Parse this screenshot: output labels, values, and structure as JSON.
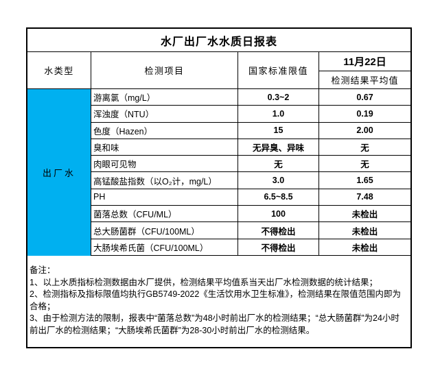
{
  "title": "水厂出厂水水质日报表",
  "header": {
    "water_type": "水类型",
    "test_item": "检测项目",
    "standard_limit": "国家标准限值",
    "date": "11月22日",
    "avg_result": "检测结果平均值"
  },
  "water_type_value": "出厂水",
  "rows": [
    {
      "item": "游离氯（mg/L）",
      "limit": "0.3~2",
      "result": "0.67"
    },
    {
      "item": "浑浊度（NTU）",
      "limit": "1.0",
      "result": "0.19"
    },
    {
      "item": "色度（Hazen）",
      "limit": "15",
      "result": "2.00"
    },
    {
      "item": "臭和味",
      "limit": "无异臭、异味",
      "result": "无"
    },
    {
      "item": "肉眼可见物",
      "limit": "无",
      "result": "无"
    },
    {
      "item": "高锰酸盐指数（以O₂计，mg/L）",
      "limit": "3.0",
      "result": "1.65"
    },
    {
      "item": "PH",
      "limit": "6.5~8.5",
      "result": "7.48"
    },
    {
      "item": "菌落总数（CFU/ML）",
      "limit": "100",
      "result": "未检出"
    },
    {
      "item": "总大肠菌群（CFU/100ML）",
      "limit": "不得检出",
      "result": "未检出"
    },
    {
      "item": "大肠埃希氏菌（CFU/100ML）",
      "limit": "不得检出",
      "result": "未检出"
    }
  ],
  "notes": {
    "label": "备注：",
    "items": [
      "1、以上水质指标检测数据由水厂提供，检测结果平均值系当天出厂水检测数据的统计结果；",
      "2、检测指标及指标限值均执行GB5749-2022《生活饮用水卫生标准》，检测结果在限值范围内即为合格；",
      "3、由于检测方法的限制，报表中“菌落总数”为48小时前出厂水的检测结果；“总大肠菌群”为24小时前出厂水的检测结果；“大肠埃希氏菌群”为28-30小时前出厂水的检测结果。"
    ]
  },
  "colors": {
    "highlight_cell": "#00B0F0",
    "border": "#000000"
  }
}
